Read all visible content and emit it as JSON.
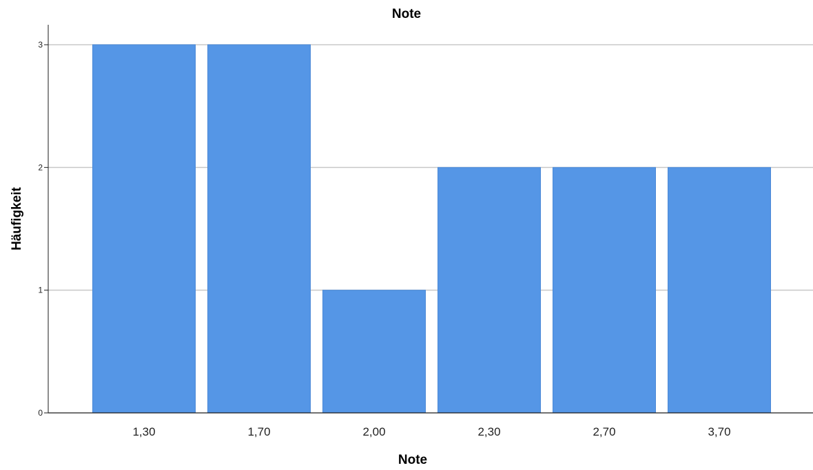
{
  "chart_data": {
    "type": "bar",
    "title": "Note",
    "xlabel": "Note",
    "ylabel": "Häufigkeit",
    "categories": [
      "1,30",
      "1,70",
      "2,00",
      "2,30",
      "2,70",
      "3,70"
    ],
    "values": [
      3,
      3,
      1,
      2,
      2,
      2
    ],
    "ylim": [
      0,
      3
    ],
    "yticks": [
      "0",
      "1",
      "2",
      "3"
    ],
    "grid": true,
    "bar_color": "#5596E6",
    "grid_color": "#C8C8C8",
    "axis_color": "#1A1A1A"
  }
}
